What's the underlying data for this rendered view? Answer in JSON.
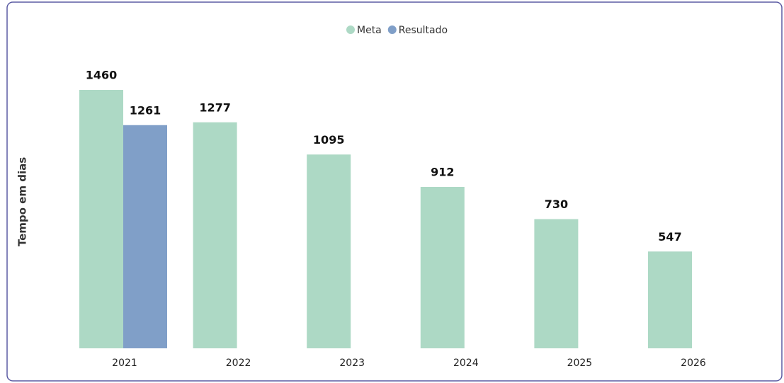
{
  "chart_data": {
    "type": "bar",
    "y_label": "Tempo em dias",
    "categories": [
      "2021",
      "2022",
      "2023",
      "2024",
      "2025",
      "2026"
    ],
    "series": [
      {
        "name": "Meta",
        "color": "#add9c5",
        "values": [
          1460,
          1277,
          1095,
          912,
          730,
          547
        ]
      },
      {
        "name": "Resultado",
        "color": "#809fc8",
        "values": [
          1261,
          null,
          null,
          null,
          null,
          null
        ]
      }
    ],
    "ylim": [
      0,
      1600
    ],
    "legend": "top"
  }
}
